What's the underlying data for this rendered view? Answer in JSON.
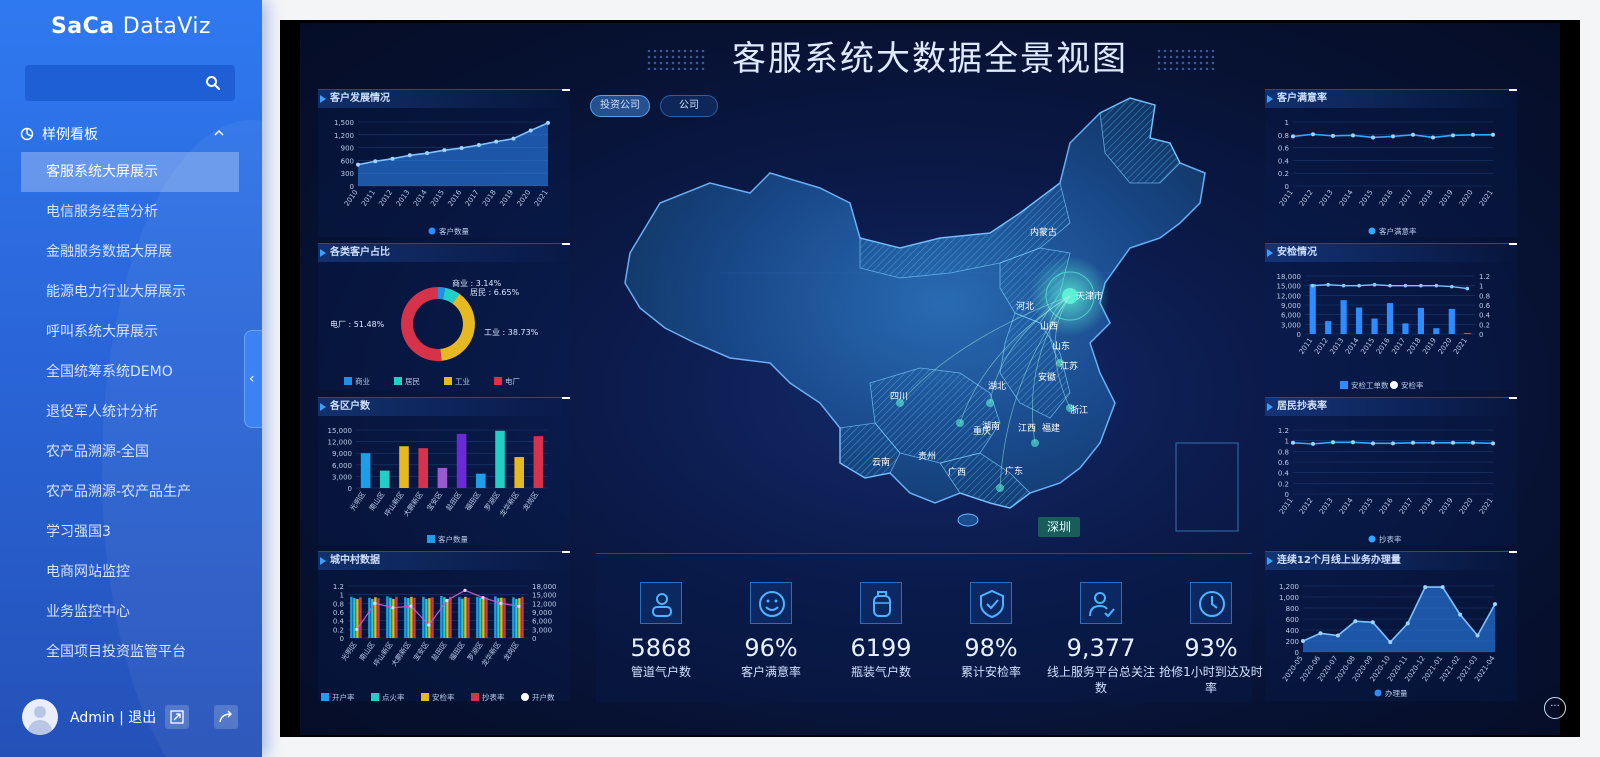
{
  "sidebar": {
    "logo_left": "SaCa",
    "logo_right": "DataViz",
    "section_title": "样例看板",
    "items": [
      {
        "label": "客服系统大屏展示"
      },
      {
        "label": "电信服务经营分析"
      },
      {
        "label": "金融服务数据大屏展"
      },
      {
        "label": "能源电力行业大屏展示"
      },
      {
        "label": "呼叫系统大屏展示"
      },
      {
        "label": "全国统筹系统DEMO"
      },
      {
        "label": "退役军人统计分析"
      },
      {
        "label": "农产品溯源-全国"
      },
      {
        "label": "农产品溯源-农产品生产"
      },
      {
        "label": "学习强国3"
      },
      {
        "label": "电商网站监控"
      },
      {
        "label": "业务监控中心"
      },
      {
        "label": "全国项目投资监管平台"
      }
    ],
    "user": "Admin | 退出"
  },
  "dashboard": {
    "title": "客服系统大数据全景视图",
    "tabs": [
      "投资公司",
      "公司"
    ],
    "panels": {
      "customer_growth": "客户发展情况",
      "customer_ratio": "各类客户占比",
      "district_households": "各区户数",
      "village_data": "城中村数据",
      "satisfaction": "客户满意率",
      "safety": "安检情况",
      "meter_reading": "居民抄表率",
      "online_business": "连续12个月线上业务办理量"
    },
    "map": {
      "highlight_city": "深圳",
      "province_labels": [
        "内蒙古",
        "天津市",
        "河北",
        "山西",
        "山东",
        "江苏",
        "安徽",
        "湖北",
        "浙江",
        "四川",
        "湖南",
        "江西",
        "重庆",
        "贵州",
        "云南",
        "广西",
        "广东",
        "福建"
      ]
    },
    "kpis": [
      {
        "value": "5868",
        "label": "管道气户数",
        "icon": "person-icon"
      },
      {
        "value": "96%",
        "label": "客户满意率",
        "icon": "smile-icon"
      },
      {
        "value": "6199",
        "label": "瓶装气户数",
        "icon": "gas-bottle-icon"
      },
      {
        "value": "98%",
        "label": "累计安检率",
        "icon": "shield-check-icon"
      },
      {
        "value": "9,377",
        "label": "线上服务平台总关注数",
        "icon": "user-check-icon"
      },
      {
        "value": "93%",
        "label": "抢修1小时到达及时率",
        "icon": "clock-icon"
      }
    ]
  },
  "chart_data": [
    {
      "id": "customer_growth",
      "type": "area",
      "title": "客户发展情况",
      "x": [
        "2010",
        "2011",
        "2012",
        "2013",
        "2014",
        "2015",
        "2016",
        "2017",
        "2018",
        "2019",
        "2020",
        "2021"
      ],
      "series": [
        {
          "name": "客户数量",
          "values": [
            500,
            580,
            640,
            720,
            770,
            840,
            890,
            960,
            1040,
            1110,
            1300,
            1480
          ]
        }
      ],
      "ylim": [
        0,
        1500
      ],
      "yticks": [
        "0",
        "300",
        "600",
        "900",
        "1,200",
        "1,500"
      ],
      "color": "#2f8cff"
    },
    {
      "id": "customer_ratio",
      "type": "pie",
      "title": "各类客户占比",
      "slices": [
        {
          "name": "商业",
          "value": 3.14,
          "label": "商业 : 3.14%",
          "color": "#1f8fe8"
        },
        {
          "name": "居民",
          "value": 6.65,
          "label": "居民 : 6.65%",
          "color": "#22cfc6"
        },
        {
          "name": "工业",
          "value": 38.73,
          "label": "工业 : 38.73%",
          "color": "#e6b822"
        },
        {
          "name": "电厂",
          "value": 51.48,
          "label": "电厂 : 51.48%",
          "color": "#d6334a"
        }
      ]
    },
    {
      "id": "district_households",
      "type": "bar",
      "title": "各区户数",
      "categories": [
        "光明区",
        "南山区",
        "坪山新区",
        "大鹏新区",
        "宝安区",
        "盐田区",
        "福田区",
        "罗湖区",
        "龙华新区",
        "龙岗区"
      ],
      "values": [
        9000,
        4500,
        10800,
        10300,
        5200,
        14000,
        3700,
        14800,
        8000,
        13400
      ],
      "colors": [
        "#1f9ee8",
        "#22cfc6",
        "#e6b822",
        "#d6334a",
        "#9b59d0",
        "#6a2bd6",
        "#1f9ee8",
        "#22cfc6",
        "#e6b822",
        "#d6334a"
      ],
      "series_name": "客户数量",
      "ylim": [
        0,
        15000
      ],
      "yticks": [
        "0",
        "3,000",
        "6,000",
        "9,000",
        "12,000",
        "15,000"
      ]
    },
    {
      "id": "village_data",
      "type": "bar",
      "title": "城中村数据",
      "categories": [
        "光明区",
        "南山区",
        "坪山新区",
        "大鹏新区",
        "宝安区",
        "盐田区",
        "福田区",
        "罗湖区",
        "龙华新区",
        "龙岗区"
      ],
      "series": [
        {
          "name": "开户率",
          "color": "#1f9ee8",
          "values": [
            0.95,
            0.93,
            0.96,
            0.94,
            0.95,
            0.97,
            0.94,
            0.95,
            0.96,
            0.94
          ]
        },
        {
          "name": "点火率",
          "color": "#22cfc6",
          "values": [
            0.92,
            0.9,
            0.93,
            0.92,
            0.9,
            0.94,
            0.91,
            0.93,
            0.92,
            0.9
          ]
        },
        {
          "name": "安检率",
          "color": "#e6b822",
          "values": [
            0.9,
            0.94,
            0.9,
            0.95,
            0.92,
            0.9,
            0.95,
            0.91,
            0.93,
            0.92
          ]
        },
        {
          "name": "抄表率",
          "color": "#d6334a",
          "values": [
            0.94,
            0.92,
            0.95,
            0.93,
            0.94,
            0.95,
            0.93,
            0.94,
            0.92,
            0.95
          ]
        }
      ],
      "line": {
        "name": "开户数",
        "color": "#c05ad6",
        "values": [
          3000,
          12000,
          10500,
          11000,
          4500,
          13000,
          16500,
          14000,
          12000,
          11000
        ]
      },
      "ylim_left": [
        0,
        1.2
      ],
      "ylim_right": [
        0,
        18000
      ],
      "yticks_left": [
        "0",
        "0.2",
        "0.4",
        "0.6",
        "0.8",
        "1",
        "1.2"
      ],
      "yticks_right": [
        "0",
        "3,000",
        "6,000",
        "9,000",
        "12,000",
        "15,000",
        "18,000"
      ]
    },
    {
      "id": "satisfaction",
      "type": "line",
      "title": "客户满意率",
      "x": [
        "2011",
        "2012",
        "2013",
        "2014",
        "2015",
        "2016",
        "2017",
        "2018",
        "2019",
        "2020",
        "2021"
      ],
      "series": [
        {
          "name": "客户满意率",
          "values": [
            0.93,
            0.97,
            0.94,
            0.95,
            0.91,
            0.93,
            0.96,
            0.91,
            0.95,
            0.96,
            0.96
          ]
        }
      ],
      "ylim": [
        0,
        1.2
      ],
      "yticks": [
        "0",
        "0.2",
        "0.4",
        "0.6",
        "0.8",
        "1"
      ],
      "color": "#34a8ff"
    },
    {
      "id": "safety",
      "type": "bar",
      "title": "安检情况",
      "x": [
        "2011",
        "2012",
        "2013",
        "2014",
        "2015",
        "2016",
        "2017",
        "2018",
        "2019",
        "2020",
        "2021"
      ],
      "series": [
        {
          "name": "安检工单数",
          "values": [
            15500,
            4000,
            10500,
            8200,
            4800,
            9600,
            3300,
            8100,
            1800,
            7800,
            300
          ]
        },
        {
          "name": "安检率",
          "values": [
            1.0,
            1.02,
            1.0,
            1.0,
            1.02,
            1.0,
            1.0,
            1.0,
            1.0,
            0.98,
            0.94
          ]
        }
      ],
      "ylim_left": [
        0,
        18000
      ],
      "ylim_right": [
        0,
        1.2
      ],
      "yticks_left": [
        "0",
        "3,000",
        "6,000",
        "9,000",
        "12,000",
        "15,000",
        "18,000"
      ],
      "yticks_right": [
        "0",
        "0.2",
        "0.4",
        "0.6",
        "0.8",
        "1",
        "1.2"
      ],
      "color": "#2f8cff"
    },
    {
      "id": "meter_reading",
      "type": "line",
      "title": "居民抄表率",
      "x": [
        "2011",
        "2012",
        "2013",
        "2014",
        "2015",
        "2016",
        "2017",
        "2018",
        "2019",
        "2020",
        "2021"
      ],
      "series": [
        {
          "name": "抄表率",
          "values": [
            0.96,
            0.94,
            0.97,
            0.97,
            0.95,
            0.95,
            0.96,
            0.96,
            0.96,
            0.96,
            0.95
          ]
        }
      ],
      "ylim": [
        0,
        1.2
      ],
      "yticks": [
        "0",
        "0.2",
        "0.4",
        "0.6",
        "0.8",
        "1",
        "1.2"
      ],
      "color": "#34a8ff"
    },
    {
      "id": "online_business",
      "type": "area",
      "title": "连续12个月线上业务办理量",
      "x": [
        "2020-05",
        "2020-06",
        "2020-07",
        "2020-08",
        "2020-09",
        "2020-10",
        "2020-11",
        "2020-12",
        "2021-01",
        "2021-02",
        "2021-03",
        "2021-04"
      ],
      "series": [
        {
          "name": "办理量",
          "values": [
            200,
            340,
            300,
            560,
            540,
            180,
            520,
            1180,
            1180,
            680,
            300,
            870
          ]
        }
      ],
      "ylim": [
        0,
        1200
      ],
      "yticks": [
        "0",
        "200",
        "400",
        "600",
        "800",
        "1,000",
        "1,200"
      ],
      "color": "#2f8cff"
    }
  ]
}
